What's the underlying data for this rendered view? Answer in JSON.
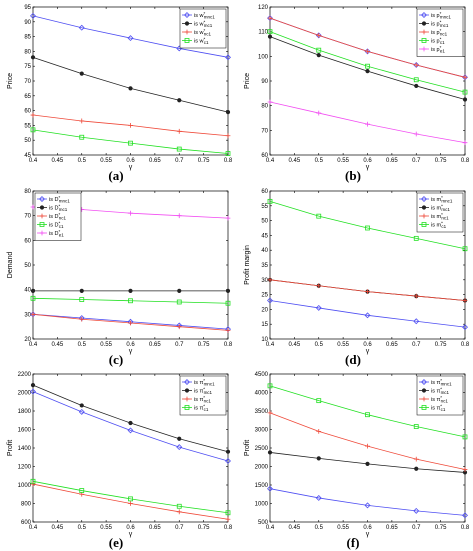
{
  "captions": [
    "(a)",
    "(b)",
    "(c)",
    "(d)",
    "(e)",
    "(f)"
  ],
  "colors": {
    "blue": "#4f4ff2",
    "black": "#222222",
    "red": "#ef4a3a",
    "green": "#22e022",
    "magenta": "#f24ef2"
  },
  "chart_data": [
    {
      "type": "line",
      "panel": "a",
      "xlabel": "γ",
      "ylabel": "Price",
      "xlim": [
        0.4,
        0.8
      ],
      "ylim": [
        45,
        95
      ],
      "xticks": [
        "0.4",
        "0.45",
        "0.5",
        "0.55",
        "0.6",
        "0.65",
        "0.7",
        "0.75",
        "0.8"
      ],
      "yticks": [
        "45",
        "50",
        "55",
        "60",
        "65",
        "70",
        "75",
        "80",
        "85",
        "90",
        "95"
      ],
      "legend_position": "top-right",
      "x": [
        0.4,
        0.5,
        0.6,
        0.7,
        0.8
      ],
      "series": [
        {
          "name": "is w*mnc1",
          "label_main": "is w",
          "label_sup": "*",
          "label_sub": "mnc1",
          "color": "blue",
          "marker": "diamond",
          "values": [
            92,
            88,
            84.5,
            81,
            78
          ]
        },
        {
          "name": "is w*mc1",
          "label_main": "is w",
          "label_sup": "*",
          "label_sub": "mc1",
          "color": "black",
          "marker": "dot",
          "values": [
            78,
            72.5,
            67.5,
            63.5,
            59.5
          ]
        },
        {
          "name": "is w*nc1",
          "label_main": "is w",
          "label_sup": "*",
          "label_sub": "nc1",
          "color": "red",
          "marker": "plus",
          "values": [
            58.5,
            56.5,
            55,
            53,
            51.5
          ]
        },
        {
          "name": "is w*c1",
          "label_main": "is w",
          "label_sup": "*",
          "label_sub": "c1",
          "color": "green",
          "marker": "square",
          "values": [
            53.5,
            51,
            49,
            47,
            45.5
          ]
        }
      ]
    },
    {
      "type": "line",
      "panel": "b",
      "xlabel": "γ",
      "ylabel": "Price",
      "xlim": [
        0.4,
        0.8
      ],
      "ylim": [
        60,
        120
      ],
      "xticks": [
        "0.4",
        "0.45",
        "0.5",
        "0.55",
        "0.6",
        "0.65",
        "0.7",
        "0.75",
        "0.8"
      ],
      "yticks": [
        "60",
        "70",
        "80",
        "90",
        "100",
        "110",
        "120"
      ],
      "legend_position": "top-right",
      "x": [
        0.4,
        0.5,
        0.6,
        0.7,
        0.8
      ],
      "series": [
        {
          "name": "is p*mnc1",
          "label_main": "is p",
          "label_sup": "*",
          "label_sub": "mnc1",
          "color": "blue",
          "marker": "diamond",
          "values": [
            115.5,
            108.5,
            102,
            96.5,
            91.5
          ]
        },
        {
          "name": "is p*mc1",
          "label_main": "is p",
          "label_sup": "*",
          "label_sub": "mc1",
          "color": "black",
          "marker": "dot",
          "values": [
            108,
            100.5,
            94,
            88,
            82.5
          ]
        },
        {
          "name": "is p*nc1",
          "label_main": "is p",
          "label_sup": "*",
          "label_sub": "nc1",
          "color": "red",
          "marker": "plus",
          "values": [
            115.5,
            108.5,
            102,
            96.5,
            91.5
          ]
        },
        {
          "name": "is p*c1",
          "label_main": "is p",
          "label_sup": "*",
          "label_sub": "c1",
          "color": "green",
          "marker": "square",
          "values": [
            110,
            102.5,
            96,
            90.5,
            85.5
          ]
        },
        {
          "name": "is p*e1",
          "label_main": "is p",
          "label_sup": "*",
          "label_sub": "e1",
          "color": "magenta",
          "marker": "plus",
          "values": [
            81.5,
            77,
            72.5,
            68.5,
            65
          ]
        }
      ]
    },
    {
      "type": "line",
      "panel": "c",
      "xlabel": "γ",
      "ylabel": "Demand",
      "xlim": [
        0.4,
        0.8
      ],
      "ylim": [
        20,
        80
      ],
      "xticks": [
        "0.4",
        "0.45",
        "0.5",
        "0.55",
        "0.6",
        "0.65",
        "0.7",
        "0.75",
        "0.8"
      ],
      "yticks": [
        "20",
        "30",
        "40",
        "50",
        "60",
        "70",
        "80"
      ],
      "legend_position": "top-left",
      "x": [
        0.4,
        0.5,
        0.6,
        0.7,
        0.8
      ],
      "series": [
        {
          "name": "is D*mnc1",
          "label_main": "is D",
          "label_sup": "*",
          "label_sub": "mnc1",
          "color": "blue",
          "marker": "diamond",
          "values": [
            30,
            28.5,
            27,
            25.5,
            24
          ]
        },
        {
          "name": "is D*mc1",
          "label_main": "is D",
          "label_sup": "*",
          "label_sub": "mc1",
          "color": "black",
          "marker": "dot",
          "values": [
            39.5,
            39.5,
            39.5,
            39.5,
            39.5
          ]
        },
        {
          "name": "is D*nc1",
          "label_main": "is D",
          "label_sup": "*",
          "label_sub": "nc1",
          "color": "red",
          "marker": "plus",
          "values": [
            30,
            28,
            26.5,
            25,
            23.5
          ]
        },
        {
          "name": "is D*c1",
          "label_main": "is D",
          "label_sup": "*",
          "label_sub": "c1",
          "color": "green",
          "marker": "square",
          "values": [
            36.5,
            36,
            35.5,
            35,
            34.5
          ]
        },
        {
          "name": "is D*e1",
          "label_main": "is D",
          "label_sup": "*",
          "label_sub": "e1",
          "color": "magenta",
          "marker": "plus",
          "values": [
            73.5,
            72.5,
            71,
            70,
            69
          ]
        }
      ]
    },
    {
      "type": "line",
      "panel": "d",
      "xlabel": "γ",
      "ylabel": "Profit margin",
      "xlim": [
        0.4,
        0.8
      ],
      "ylim": [
        10,
        60
      ],
      "xticks": [
        "0.4",
        "0.45",
        "0.5",
        "0.55",
        "0.6",
        "0.65",
        "0.7",
        "0.75",
        "0.8"
      ],
      "yticks": [
        "10",
        "15",
        "20",
        "25",
        "30",
        "35",
        "40",
        "45",
        "50",
        "55",
        "60"
      ],
      "legend_position": "top-right",
      "x": [
        0.4,
        0.5,
        0.6,
        0.7,
        0.8
      ],
      "series": [
        {
          "name": "is m*mnc1",
          "label_main": "is m",
          "label_sup": "*",
          "label_sub": "mnc1",
          "color": "blue",
          "marker": "diamond",
          "values": [
            23,
            20.5,
            18,
            16,
            14
          ]
        },
        {
          "name": "is m*mc1",
          "label_main": "is m",
          "label_sup": "*",
          "label_sub": "mc1",
          "color": "black",
          "marker": "dot",
          "values": [
            30,
            28,
            26,
            24.5,
            23
          ]
        },
        {
          "name": "is m*nc1",
          "label_main": "is m",
          "label_sup": "*",
          "label_sub": "nc1",
          "color": "red",
          "marker": "plus",
          "values": [
            30,
            28,
            26,
            24.5,
            23
          ]
        },
        {
          "name": "is m*c1",
          "label_main": "is m",
          "label_sup": "*",
          "label_sub": "c1",
          "color": "green",
          "marker": "square",
          "values": [
            56.5,
            51.5,
            47.5,
            44,
            40.5
          ]
        }
      ]
    },
    {
      "type": "line",
      "panel": "e",
      "xlabel": "γ",
      "ylabel": "Profit",
      "xlim": [
        0.4,
        0.8
      ],
      "ylim": [
        600,
        2200
      ],
      "xticks": [
        "0.4",
        "0.45",
        "0.5",
        "0.55",
        "0.6",
        "0.65",
        "0.7",
        "0.75",
        "0.8"
      ],
      "yticks": [
        "600",
        "800",
        "1000",
        "1200",
        "1400",
        "1600",
        "1800",
        "2000",
        "2200"
      ],
      "legend_position": "top-right",
      "x": [
        0.4,
        0.5,
        0.6,
        0.7,
        0.8
      ],
      "series": [
        {
          "name": "is π*mnc1",
          "label_main": "is π",
          "label_sup": "*",
          "label_sub": "mnc1",
          "color": "blue",
          "marker": "diamond",
          "values": [
            2010,
            1790,
            1590,
            1410,
            1260
          ]
        },
        {
          "name": "is π*mc1",
          "label_main": "is π",
          "label_sup": "*",
          "label_sub": "mc1",
          "color": "black",
          "marker": "dot",
          "values": [
            2080,
            1860,
            1670,
            1500,
            1360
          ]
        },
        {
          "name": "is π*nc1",
          "label_main": "is π",
          "label_sup": "*",
          "label_sub": "nc1",
          "color": "red",
          "marker": "plus",
          "values": [
            1010,
            900,
            800,
            710,
            630
          ]
        },
        {
          "name": "is π*c1",
          "label_main": "is π",
          "label_sup": "*",
          "label_sub": "c1",
          "color": "green",
          "marker": "square",
          "values": [
            1040,
            940,
            850,
            770,
            700
          ]
        }
      ]
    },
    {
      "type": "line",
      "panel": "f",
      "xlabel": "γ",
      "ylabel": "Profit",
      "xlim": [
        0.4,
        0.8
      ],
      "ylim": [
        500,
        4500
      ],
      "xticks": [
        "0.4",
        "0.45",
        "0.5",
        "0.55",
        "0.6",
        "0.65",
        "0.7",
        "0.75",
        "0.8"
      ],
      "yticks": [
        "500",
        "1000",
        "1500",
        "2000",
        "2500",
        "3000",
        "3500",
        "4000",
        "4500"
      ],
      "legend_position": "top-right",
      "x": [
        0.4,
        0.5,
        0.6,
        0.7,
        0.8
      ],
      "series": [
        {
          "name": "is π*mnc1",
          "label_main": "is π",
          "label_sup": "*",
          "label_sub": "mnc1",
          "color": "blue",
          "marker": "diamond",
          "values": [
            1400,
            1150,
            950,
            800,
            680
          ]
        },
        {
          "name": "is π*mc1",
          "label_main": "is π",
          "label_sup": "*",
          "label_sub": "mc1",
          "color": "black",
          "marker": "dot",
          "values": [
            2380,
            2220,
            2070,
            1940,
            1840
          ]
        },
        {
          "name": "is π*nc1",
          "label_main": "is π",
          "label_sup": "*",
          "label_sub": "nc1",
          "color": "red",
          "marker": "plus",
          "values": [
            3450,
            2950,
            2550,
            2200,
            1920
          ]
        },
        {
          "name": "is π*c1",
          "label_main": "is π",
          "label_sup": "*",
          "label_sub": "c1",
          "color": "green",
          "marker": "square",
          "values": [
            4180,
            3780,
            3400,
            3080,
            2800
          ]
        }
      ]
    }
  ]
}
